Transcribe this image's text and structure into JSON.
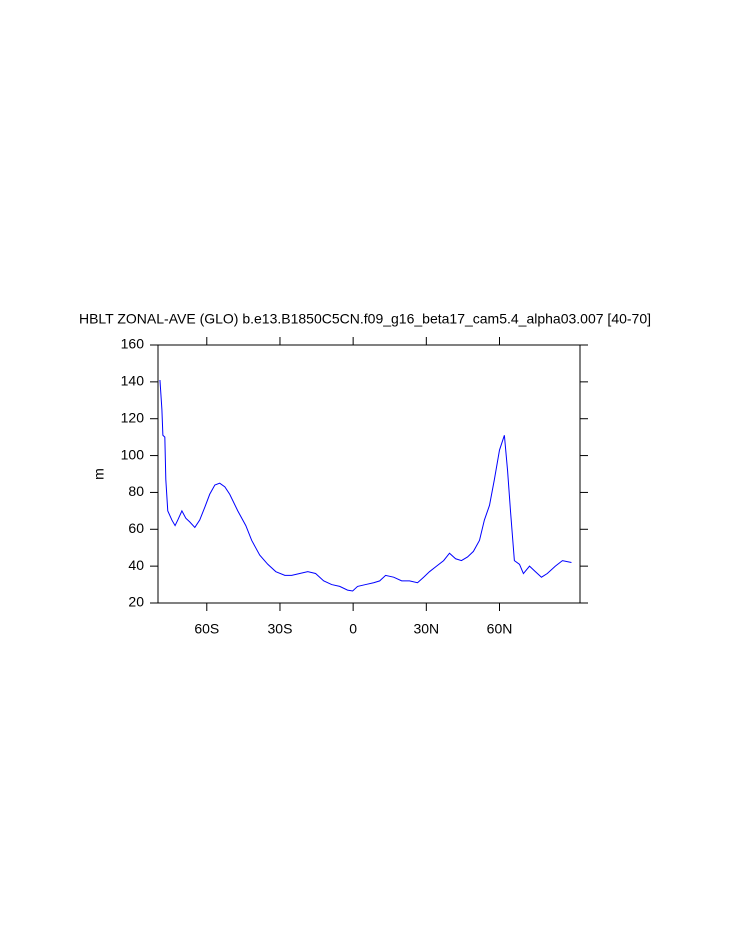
{
  "chart_data": {
    "type": "line",
    "title": "HBLT ZONAL-AVE (GLO) b.e13.B1850C5CN.f09_g16_beta17_cam5.4_alpha03.007 [40-70]",
    "y_label": "m",
    "xlim": [
      -80,
      93
    ],
    "ylim": [
      20,
      160
    ],
    "xticks": [
      {
        "value": -60,
        "label": "60S"
      },
      {
        "value": -30,
        "label": "30S"
      },
      0,
      {
        "value": 30,
        "label": "30N"
      },
      {
        "value": 60,
        "label": "60N"
      }
    ],
    "yticks": [
      20,
      40,
      60,
      80,
      100,
      120,
      140,
      160
    ],
    "series": [
      {
        "color": "#0000ff",
        "x": [
          -79.2,
          -78.4,
          -78,
          -77.2,
          -76.8,
          -76,
          -74.3,
          -73,
          -71.9,
          -70.2,
          -68.6,
          -67,
          -64.9,
          -62.9,
          -60.8,
          -58.8,
          -56.7,
          -54.7,
          -52.6,
          -50.6,
          -47.3,
          -44,
          -41.6,
          -38.3,
          -35,
          -31.7,
          -28,
          -25.2,
          -21.9,
          -18.6,
          -15.4,
          -12.1,
          -8.8,
          -5.5,
          -2.3,
          -0.2,
          1.8,
          5.1,
          8.4,
          10.9,
          13.3,
          16.6,
          19.9,
          23.1,
          26.4,
          28.9,
          31.3,
          34.2,
          37.1,
          39.5,
          42,
          44.4,
          46.9,
          49.3,
          51.8,
          53.8,
          55.9,
          57.9,
          60,
          62,
          63.3,
          64.5,
          66.1,
          68.2,
          69.8,
          72.3,
          74.7,
          77.2,
          79.6,
          82.9,
          85.8,
          89.5
        ],
        "values": [
          141,
          125,
          111,
          110,
          87,
          70,
          65,
          62,
          65,
          70,
          66,
          64,
          61,
          65,
          72,
          79,
          84,
          85,
          83,
          79,
          70,
          62,
          54,
          46,
          41,
          37,
          35,
          35,
          36,
          37,
          36,
          32,
          30,
          29,
          27,
          26.5,
          29,
          30,
          31,
          32,
          35,
          34,
          32,
          32,
          31,
          34,
          37,
          40,
          43,
          47,
          44,
          43,
          45,
          48,
          54,
          65,
          73,
          87,
          103,
          111,
          92,
          70,
          43,
          41,
          36,
          40,
          37,
          34,
          36,
          40,
          43,
          42
        ]
      }
    ]
  }
}
